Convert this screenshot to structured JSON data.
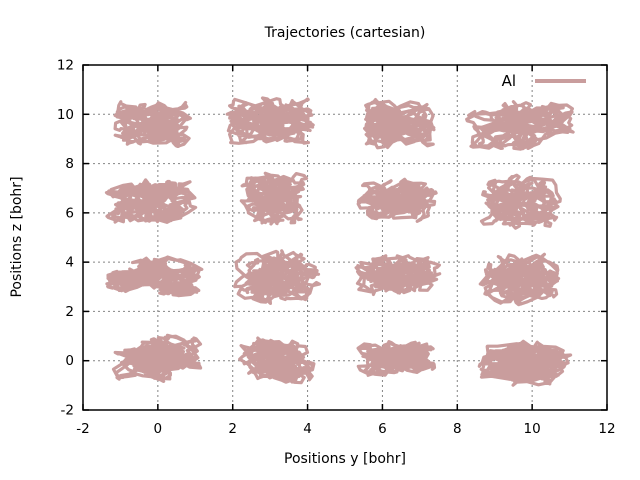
{
  "chart_data": {
    "type": "line",
    "title": "Trajectories (cartesian)",
    "xlabel": "Positions y [bohr]",
    "ylabel": "Positions z [bohr]",
    "xlim": [
      -2,
      12
    ],
    "ylim": [
      -2,
      12
    ],
    "xticks": [
      -2,
      0,
      2,
      4,
      6,
      8,
      10,
      12
    ],
    "yticks": [
      -2,
      0,
      2,
      4,
      6,
      8,
      10,
      12
    ],
    "grid": true,
    "legend": {
      "label": "Al",
      "position": "top-right"
    },
    "line_color": "#c99d9d",
    "grid_color": "#848484",
    "border_color": "#000000",
    "series_description": "16 tangled atomic trajectory clusters arranged in a 4x4 lattice",
    "clusters": [
      {
        "x": -0.1,
        "z": 9.6,
        "rx": 1.15,
        "rz": 0.95,
        "seed": 3
      },
      {
        "x": 3.0,
        "z": 9.7,
        "rx": 1.25,
        "rz": 0.9,
        "seed": 7
      },
      {
        "x": 6.3,
        "z": 9.6,
        "rx": 1.0,
        "rz": 0.95,
        "seed": 11
      },
      {
        "x": 9.7,
        "z": 9.6,
        "rx": 1.3,
        "rz": 1.0,
        "seed": 19
      },
      {
        "x": -0.2,
        "z": 6.5,
        "rx": 1.25,
        "rz": 1.0,
        "seed": 23
      },
      {
        "x": 3.1,
        "z": 6.6,
        "rx": 1.0,
        "rz": 1.05,
        "seed": 29
      },
      {
        "x": 6.4,
        "z": 6.5,
        "rx": 1.1,
        "rz": 0.9,
        "seed": 31
      },
      {
        "x": 9.7,
        "z": 6.4,
        "rx": 1.05,
        "rz": 1.0,
        "seed": 37
      },
      {
        "x": -0.1,
        "z": 3.4,
        "rx": 1.3,
        "rz": 0.85,
        "seed": 41
      },
      {
        "x": 3.2,
        "z": 3.4,
        "rx": 1.1,
        "rz": 1.15,
        "seed": 43
      },
      {
        "x": 6.4,
        "z": 3.5,
        "rx": 1.1,
        "rz": 0.85,
        "seed": 47
      },
      {
        "x": 9.7,
        "z": 3.3,
        "rx": 1.0,
        "rz": 1.1,
        "seed": 53
      },
      {
        "x": 0.0,
        "z": 0.1,
        "rx": 1.3,
        "rz": 1.0,
        "seed": 59
      },
      {
        "x": 3.2,
        "z": 0.0,
        "rx": 1.1,
        "rz": 1.05,
        "seed": 61
      },
      {
        "x": 6.4,
        "z": 0.1,
        "rx": 1.05,
        "rz": 0.8,
        "seed": 67
      },
      {
        "x": 9.8,
        "z": -0.1,
        "rx": 1.35,
        "rz": 0.95,
        "seed": 71
      }
    ]
  }
}
